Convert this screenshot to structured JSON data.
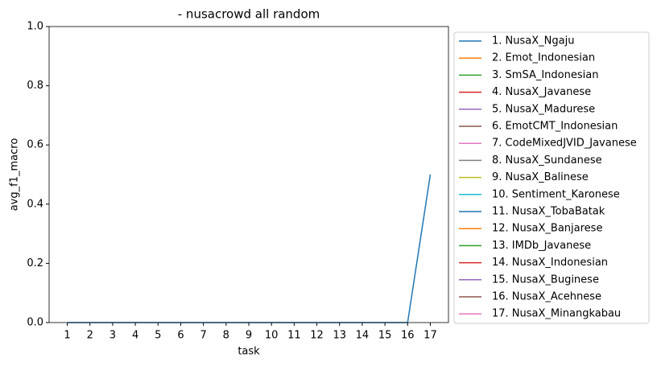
{
  "chart_data": {
    "type": "line",
    "title": "- nusacrowd all random",
    "xlabel": "task",
    "ylabel": "avg_f1_macro",
    "x": [
      1,
      2,
      3,
      4,
      5,
      6,
      7,
      8,
      9,
      10,
      11,
      12,
      13,
      14,
      15,
      16,
      17
    ],
    "xlim": [
      0.2,
      17.8
    ],
    "xticks": [
      1,
      2,
      3,
      4,
      5,
      6,
      7,
      8,
      9,
      10,
      11,
      12,
      13,
      14,
      15,
      16,
      17
    ],
    "ylim": [
      0,
      1
    ],
    "yticks": [
      {
        "value": 0,
        "label": "0.0"
      },
      {
        "value": 0.2,
        "label": "0.2"
      },
      {
        "value": 0.4,
        "label": "0.4"
      },
      {
        "value": 0.6,
        "label": "0.6"
      },
      {
        "value": 0.8,
        "label": "0.8"
      },
      {
        "value": 1,
        "label": "1.0"
      }
    ],
    "legend": "outside right",
    "series": [
      {
        "name": "1. NusaX_Ngaju",
        "color": "#1f77b4",
        "values": [
          0,
          0,
          0,
          0,
          0,
          0,
          0,
          0,
          0,
          0,
          0,
          0,
          0,
          0,
          0,
          0,
          0.5
        ]
      },
      {
        "name": "2. Emot_Indonesian",
        "color": "#ff7f0e",
        "values": [
          null,
          null,
          null,
          null,
          null,
          null,
          null,
          null,
          null,
          null,
          null,
          null,
          null,
          null,
          null,
          null,
          null
        ]
      },
      {
        "name": "3. SmSA_Indonesian",
        "color": "#2ca02c",
        "values": [
          null,
          null,
          null,
          null,
          null,
          null,
          null,
          null,
          null,
          null,
          null,
          null,
          null,
          null,
          null,
          null,
          null
        ]
      },
      {
        "name": "4. NusaX_Javanese",
        "color": "#d62728",
        "values": [
          null,
          null,
          null,
          null,
          null,
          null,
          null,
          null,
          null,
          null,
          null,
          null,
          null,
          null,
          null,
          null,
          null
        ]
      },
      {
        "name": "5. NusaX_Madurese",
        "color": "#9467bd",
        "values": [
          null,
          null,
          null,
          null,
          null,
          null,
          null,
          null,
          null,
          null,
          null,
          null,
          null,
          null,
          null,
          null,
          null
        ]
      },
      {
        "name": "6. EmotCMT_Indonesian",
        "color": "#8c564b",
        "values": [
          null,
          null,
          null,
          null,
          null,
          null,
          null,
          null,
          null,
          null,
          null,
          null,
          null,
          null,
          null,
          null,
          null
        ]
      },
      {
        "name": "7. CodeMixedJVID_Javanese",
        "color": "#e377c2",
        "values": [
          null,
          null,
          null,
          null,
          null,
          null,
          null,
          null,
          null,
          null,
          null,
          null,
          null,
          null,
          null,
          null,
          null
        ]
      },
      {
        "name": "8. NusaX_Sundanese",
        "color": "#7f7f7f",
        "values": [
          null,
          null,
          null,
          null,
          null,
          null,
          null,
          null,
          null,
          null,
          null,
          null,
          null,
          null,
          null,
          null,
          null
        ]
      },
      {
        "name": "9. NusaX_Balinese",
        "color": "#bcbd22",
        "values": [
          null,
          null,
          null,
          null,
          null,
          null,
          null,
          null,
          null,
          null,
          null,
          null,
          null,
          null,
          null,
          null,
          null
        ]
      },
      {
        "name": "10. Sentiment_Karonese",
        "color": "#17becf",
        "values": [
          null,
          null,
          null,
          null,
          null,
          null,
          null,
          null,
          null,
          null,
          null,
          null,
          null,
          null,
          null,
          null,
          null
        ]
      },
      {
        "name": "11. NusaX_TobaBatak",
        "color": "#1f77b4",
        "values": [
          null,
          null,
          null,
          null,
          null,
          null,
          null,
          null,
          null,
          null,
          null,
          null,
          null,
          null,
          null,
          null,
          null
        ]
      },
      {
        "name": "12. NusaX_Banjarese",
        "color": "#ff7f0e",
        "values": [
          null,
          null,
          null,
          null,
          null,
          null,
          null,
          null,
          null,
          null,
          null,
          null,
          null,
          null,
          null,
          null,
          null
        ]
      },
      {
        "name": "13. IMDb_Javanese",
        "color": "#2ca02c",
        "values": [
          null,
          null,
          null,
          null,
          null,
          null,
          null,
          null,
          null,
          null,
          null,
          null,
          null,
          null,
          null,
          null,
          null
        ]
      },
      {
        "name": "14. NusaX_Indonesian",
        "color": "#d62728",
        "values": [
          null,
          null,
          null,
          null,
          null,
          null,
          null,
          null,
          null,
          null,
          null,
          null,
          null,
          null,
          null,
          null,
          null
        ]
      },
      {
        "name": "15. NusaX_Buginese",
        "color": "#9467bd",
        "values": [
          null,
          null,
          null,
          null,
          null,
          null,
          null,
          null,
          null,
          null,
          null,
          null,
          null,
          null,
          null,
          null,
          null
        ]
      },
      {
        "name": "16. NusaX_Acehnese",
        "color": "#8c564b",
        "values": [
          null,
          null,
          null,
          null,
          null,
          null,
          null,
          null,
          null,
          null,
          null,
          null,
          null,
          null,
          null,
          null,
          null
        ]
      },
      {
        "name": "17. NusaX_Minangkabau",
        "color": "#e377c2",
        "values": [
          null,
          null,
          null,
          null,
          null,
          null,
          null,
          null,
          null,
          null,
          null,
          null,
          null,
          null,
          null,
          null,
          null
        ]
      }
    ]
  }
}
